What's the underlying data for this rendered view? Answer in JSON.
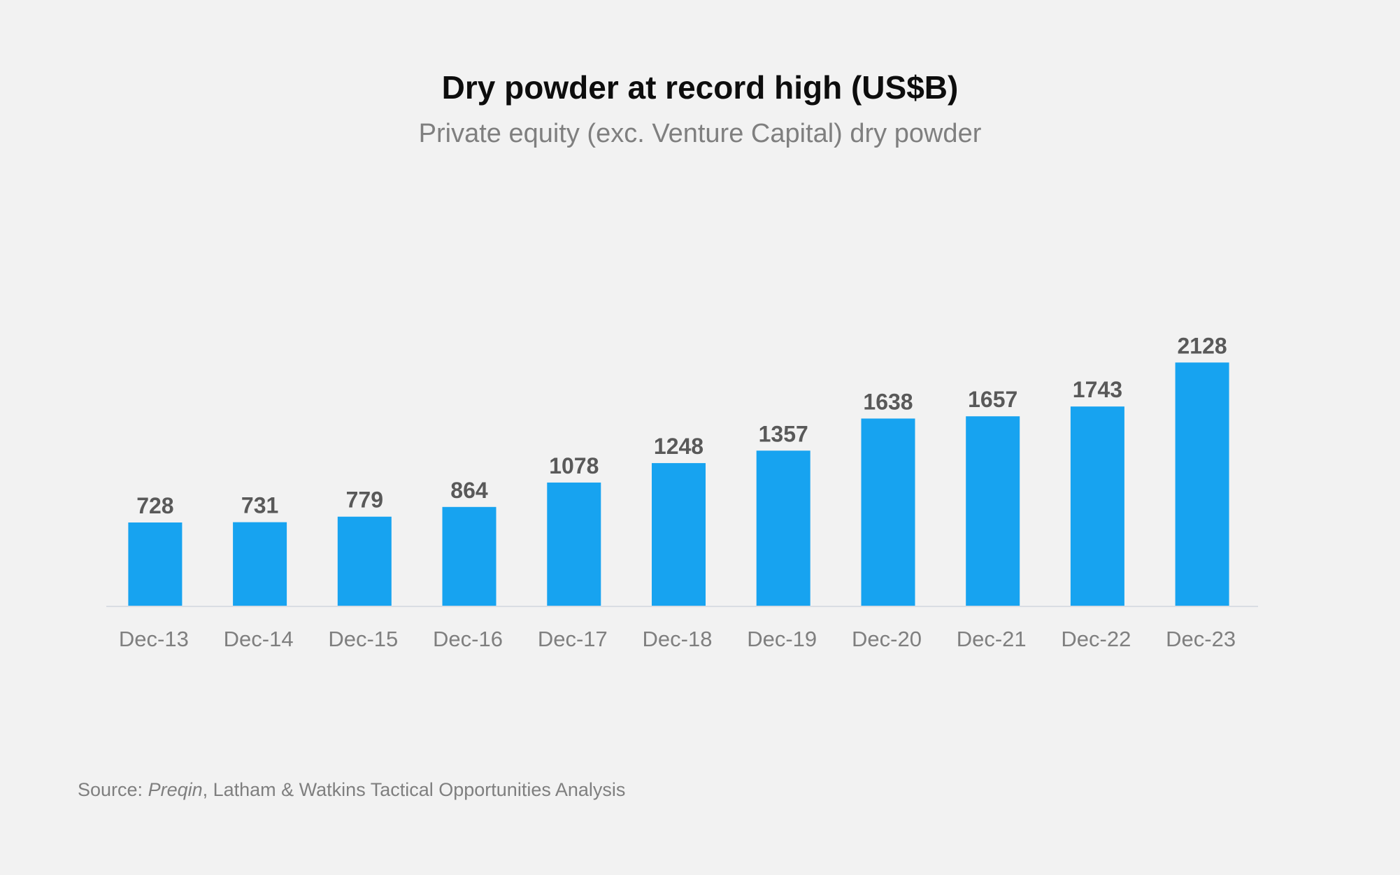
{
  "chart_data": {
    "type": "bar",
    "title": "Dry powder at record high (US$B)",
    "subtitle": "Private equity (exc. Venture Capital) dry powder",
    "categories": [
      "Dec-13",
      "Dec-14",
      "Dec-15",
      "Dec-16",
      "Dec-17",
      "Dec-18",
      "Dec-19",
      "Dec-20",
      "Dec-21",
      "Dec-22",
      "Dec-23"
    ],
    "values": [
      728,
      731,
      779,
      864,
      1078,
      1248,
      1357,
      1638,
      1657,
      1743,
      2128
    ],
    "xlabel": "",
    "ylabel": "",
    "grid": false,
    "data_labels": true,
    "bar_color": "#17a3f0"
  },
  "source": {
    "prefix": "Source: ",
    "publisher": "Preqin",
    "rest": ", Latham & Watkins Tactical Opportunities Analysis"
  }
}
